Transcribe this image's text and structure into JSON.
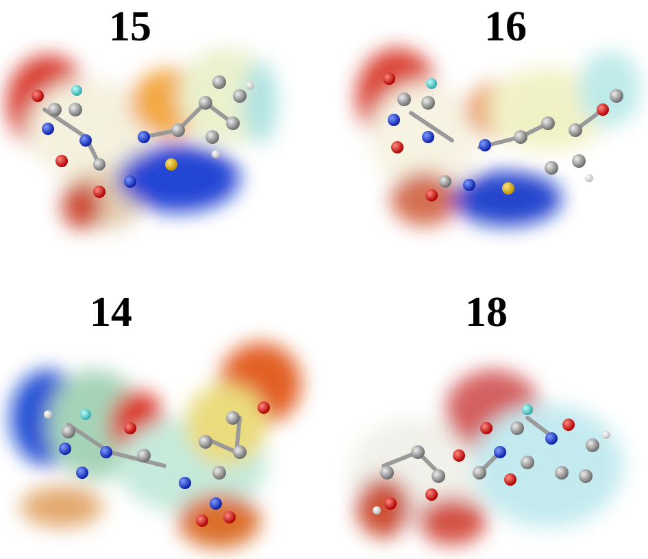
{
  "panels": [
    {
      "label": "15"
    },
    {
      "label": "16"
    },
    {
      "label": "14"
    },
    {
      "label": "18"
    }
  ]
}
